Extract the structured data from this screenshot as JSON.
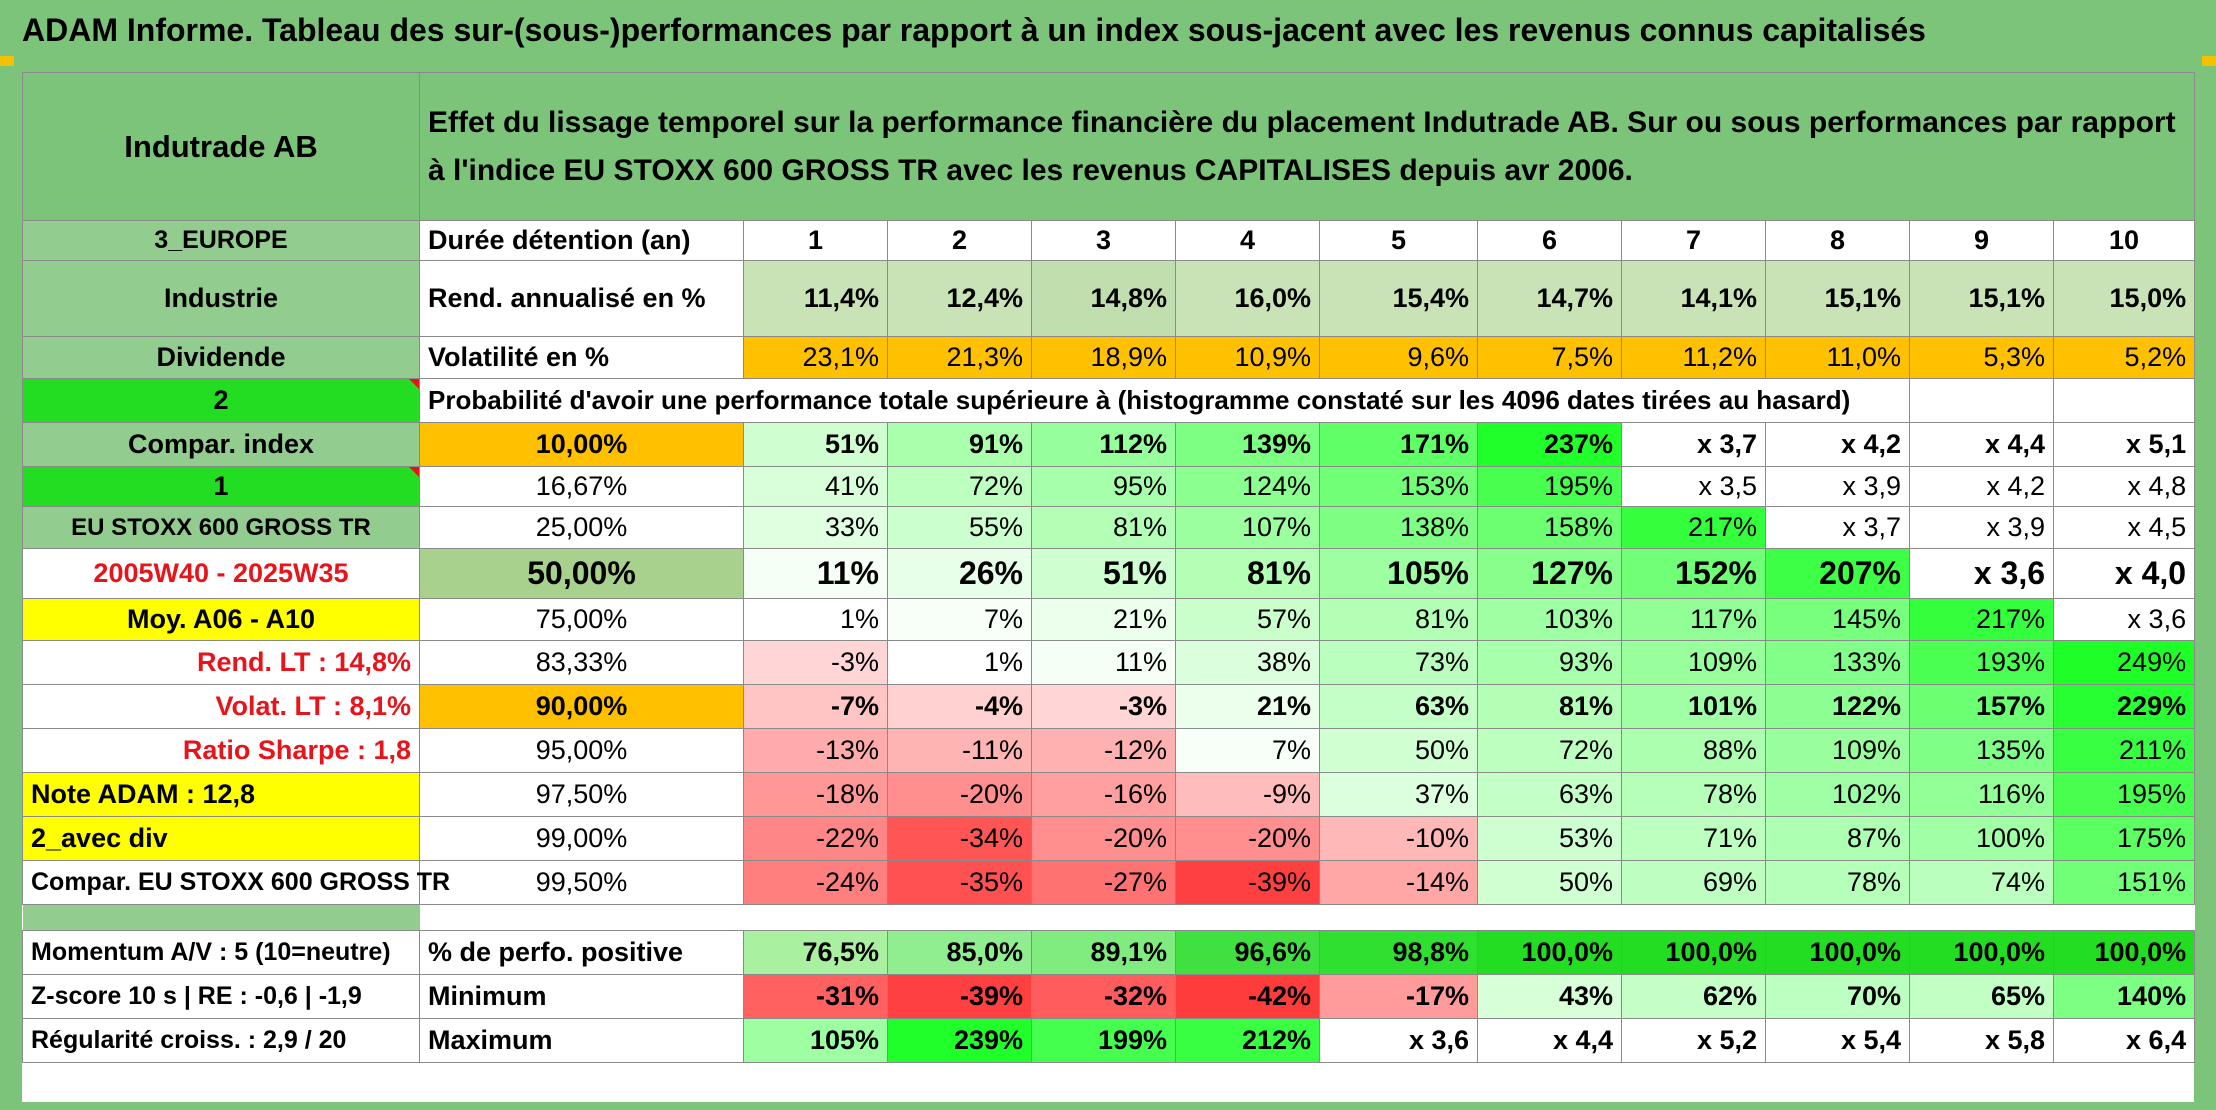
{
  "title": "ADAM Informe. Tableau des sur-(sous-)performances par rapport à un index sous-jacent avec les revenus connus capitalisés",
  "colors": {
    "header_green": "#7dc47b",
    "label_green": "#92cc8e",
    "bright_green": "#22dd22",
    "yellow": "#ffff00",
    "orange": "#ffc000",
    "red_text": "#e8141b"
  },
  "header": {
    "company": "Indutrade AB",
    "description": "Effet du lissage temporel sur la performance financière du placement Indutrade AB. Sur ou sous performances par rapport à l'indice EU STOXX 600 GROSS TR avec les revenus CAPITALISES depuis avr 2006."
  },
  "rows": {
    "region": "3_EUROPE",
    "duration_label": "Durée détention (an)",
    "years": [
      "1",
      "2",
      "3",
      "4",
      "5",
      "6",
      "7",
      "8",
      "9",
      "10"
    ],
    "sector": "Industrie",
    "return_label": "Rend. annualisé en %",
    "returns": [
      "11,4%",
      "12,4%",
      "14,8%",
      "16,0%",
      "15,4%",
      "14,7%",
      "14,1%",
      "15,1%",
      "15,1%",
      "15,0%"
    ],
    "dividend": "Dividende",
    "volatility_label": "Volatilité en %",
    "volatility": [
      "23,1%",
      "21,3%",
      "18,9%",
      "10,9%",
      "9,6%",
      "7,5%",
      "11,2%",
      "11,0%",
      "5,3%",
      "5,2%"
    ],
    "number_2": "2",
    "probability_label": "Probabilité d'avoir une performance totale supérieure à (histogramme constaté sur les 4096 dates tirées au hasard)"
  },
  "quantile_rows": [
    {
      "left": "Compar. index",
      "pct": "10,00%",
      "values": [
        "51%",
        "91%",
        "112%",
        "139%",
        "171%",
        "237%",
        "x 3,7",
        "x 4,2",
        "x 4,4",
        "x 5,1"
      ]
    },
    {
      "left": "1",
      "pct": "16,67%",
      "values": [
        "41%",
        "72%",
        "95%",
        "124%",
        "153%",
        "195%",
        "x 3,5",
        "x 3,9",
        "x 4,2",
        "x 4,8"
      ]
    },
    {
      "left": "EU STOXX 600 GROSS TR",
      "pct": "25,00%",
      "values": [
        "33%",
        "55%",
        "81%",
        "107%",
        "138%",
        "158%",
        "217%",
        "x 3,7",
        "x 3,9",
        "x 4,5"
      ]
    },
    {
      "left": "2005W40 - 2025W35",
      "pct": "50,00%",
      "values": [
        "11%",
        "26%",
        "51%",
        "81%",
        "105%",
        "127%",
        "152%",
        "207%",
        "x 3,6",
        "x 4,0"
      ]
    },
    {
      "left": "Moy. A06 - A10",
      "pct": "75,00%",
      "values": [
        "1%",
        "7%",
        "21%",
        "57%",
        "81%",
        "103%",
        "117%",
        "145%",
        "217%",
        "x 3,6"
      ]
    },
    {
      "left": "Rend. LT :   14,8%",
      "pct": "83,33%",
      "values": [
        "-3%",
        "1%",
        "11%",
        "38%",
        "73%",
        "93%",
        "109%",
        "133%",
        "193%",
        "249%"
      ]
    },
    {
      "left": "Volat. LT :   8,1%",
      "pct": "90,00%",
      "values": [
        "-7%",
        "-4%",
        "-3%",
        "21%",
        "63%",
        "81%",
        "101%",
        "122%",
        "157%",
        "229%"
      ]
    },
    {
      "left": "Ratio Sharpe :   1,8",
      "pct": "95,00%",
      "values": [
        "-13%",
        "-11%",
        "-12%",
        "7%",
        "50%",
        "72%",
        "88%",
        "109%",
        "135%",
        "211%"
      ]
    },
    {
      "left": "Note ADAM : 12,8",
      "pct": "97,50%",
      "values": [
        "-18%",
        "-20%",
        "-16%",
        "-9%",
        "37%",
        "63%",
        "78%",
        "102%",
        "116%",
        "195%"
      ]
    },
    {
      "left": "2_avec div",
      "pct": "99,00%",
      "values": [
        "-22%",
        "-34%",
        "-20%",
        "-20%",
        "-10%",
        "53%",
        "71%",
        "87%",
        "100%",
        "175%"
      ]
    },
    {
      "left": "Compar. EU STOXX 600 GROSS TR",
      "pct": "99,50%",
      "values": [
        "-24%",
        "-35%",
        "-27%",
        "-39%",
        "-14%",
        "50%",
        "69%",
        "78%",
        "74%",
        "151%"
      ]
    }
  ],
  "bottom_rows": [
    {
      "left": "Momentum A/V : 5 (10=neutre)",
      "label": "% de perfo. positive",
      "values": [
        "76,5%",
        "85,0%",
        "89,1%",
        "96,6%",
        "98,8%",
        "100,0%",
        "100,0%",
        "100,0%",
        "100,0%",
        "100,0%"
      ]
    },
    {
      "left": "Z-score 10 s | RE : -0,6 | -1,9",
      "label": "Minimum",
      "values": [
        "-31%",
        "-39%",
        "-32%",
        "-42%",
        "-17%",
        "43%",
        "62%",
        "70%",
        "65%",
        "140%"
      ]
    },
    {
      "left": "Régularité croiss. : 2,9 / 20",
      "label": "Maximum",
      "values": [
        "105%",
        "239%",
        "199%",
        "212%",
        "x 3,6",
        "x 4,4",
        "x 5,2",
        "x 5,4",
        "x 5,8",
        "x 6,4"
      ]
    }
  ]
}
